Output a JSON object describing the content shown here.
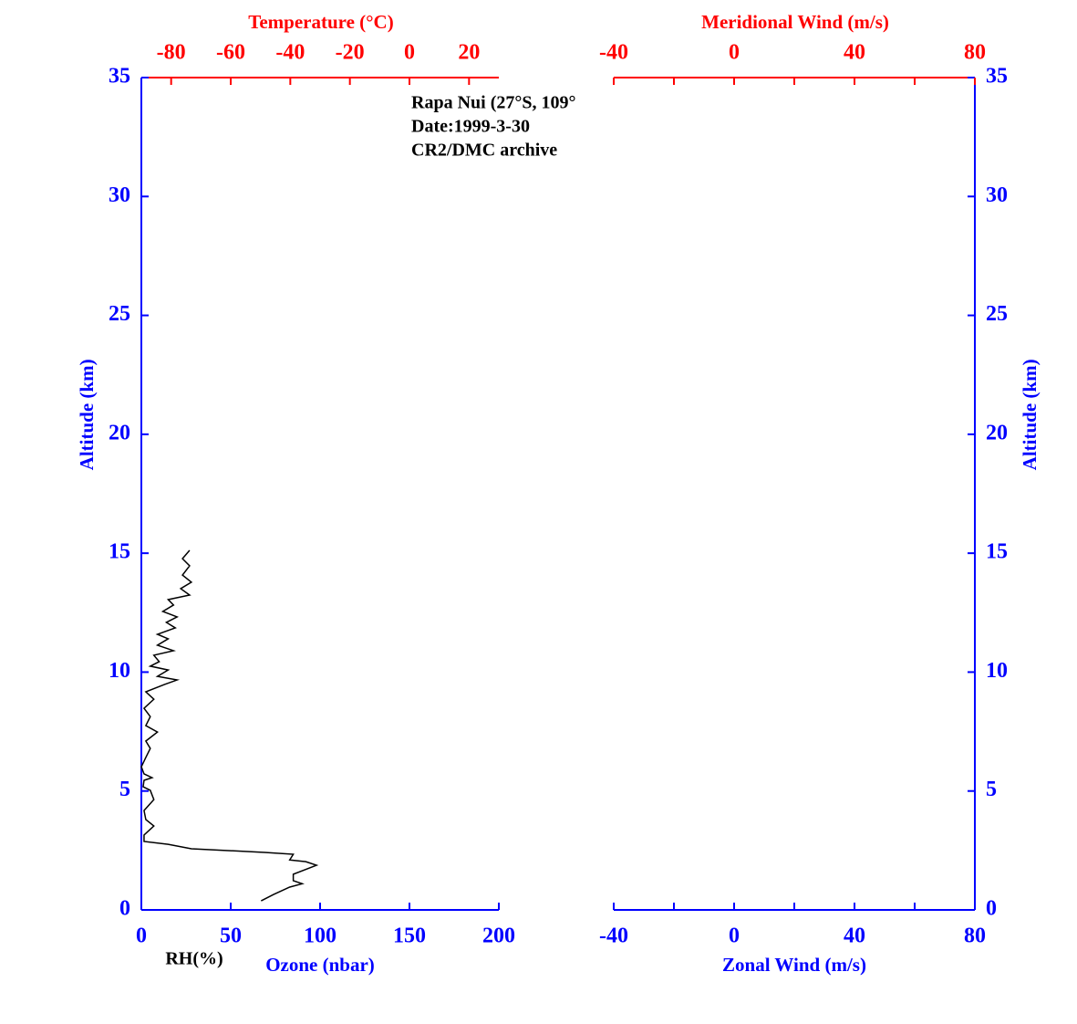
{
  "chart_data": [
    {
      "type": "line",
      "annotations": [
        "Rapa Nui (27°S, 109°",
        "Date:1999-3-30",
        "CR2/DMC archive"
      ],
      "xlabel": "Ozone (nbar)",
      "x2label": "Temperature (°C)",
      "ylabel": "Altitude (km)",
      "xlim": [
        0,
        200
      ],
      "xticks": [
        0,
        50,
        100,
        150,
        200
      ],
      "x2lim": [
        -90,
        30
      ],
      "x2ticks": [
        -80,
        -60,
        -40,
        -20,
        0,
        20
      ],
      "ylim": [
        0,
        35
      ],
      "yticks": [
        0,
        5,
        10,
        15,
        20,
        25,
        30,
        35
      ],
      "axis_color": "#0000ff",
      "x2_color": "#ff0000",
      "series": [
        {
          "name": "RH(%)",
          "color": "#000000",
          "x": [
            67,
            74,
            83,
            90,
            85,
            85,
            98,
            92,
            83,
            85,
            69,
            28,
            15,
            1.5,
            1.5,
            7,
            2.5,
            1.5,
            7,
            5,
            1,
            1.5,
            6,
            1.5,
            0,
            2.5,
            5,
            2.5,
            9,
            2.5,
            5,
            1.5,
            7,
            2.5,
            13,
            20,
            9,
            15,
            5,
            10,
            7,
            18,
            9,
            15,
            9,
            19,
            14,
            20,
            12,
            18,
            15,
            27,
            22,
            28,
            23,
            27,
            23,
            27
          ],
          "values": [
            0.38,
            0.65,
            0.96,
            1.1,
            1.23,
            1.5,
            1.88,
            2.03,
            2.1,
            2.34,
            2.42,
            2.57,
            2.76,
            2.88,
            3.15,
            3.53,
            3.8,
            4.18,
            4.64,
            5.03,
            5.18,
            5.45,
            5.56,
            5.72,
            6.02,
            6.41,
            6.79,
            7.1,
            7.48,
            7.75,
            8.13,
            8.48,
            8.86,
            9.17,
            9.48,
            9.67,
            9.82,
            10.09,
            10.25,
            10.44,
            10.71,
            10.9,
            11.13,
            11.4,
            11.59,
            11.86,
            12.09,
            12.32,
            12.55,
            12.82,
            13.05,
            13.24,
            13.51,
            13.78,
            14.08,
            14.47,
            14.77,
            15.12
          ]
        }
      ]
    },
    {
      "type": "line",
      "xlabel": "Zonal Wind (m/s)",
      "x2label": "Meridional Wind (m/s)",
      "ylabel": "Altitude (km)",
      "xlim": [
        -40,
        80
      ],
      "xticks": [
        -40,
        0,
        40,
        80
      ],
      "xminorticks": [
        -20,
        20,
        60
      ],
      "x2lim": [
        -40,
        80
      ],
      "x2ticks": [
        -40,
        0,
        40,
        80
      ],
      "x2minorticks": [
        -20,
        20,
        60
      ],
      "ylim": [
        0,
        35
      ],
      "yticks": [
        0,
        5,
        10,
        15,
        20,
        25,
        30,
        35
      ],
      "axis_color": "#0000ff",
      "x2_color": "#ff0000",
      "series": []
    }
  ]
}
